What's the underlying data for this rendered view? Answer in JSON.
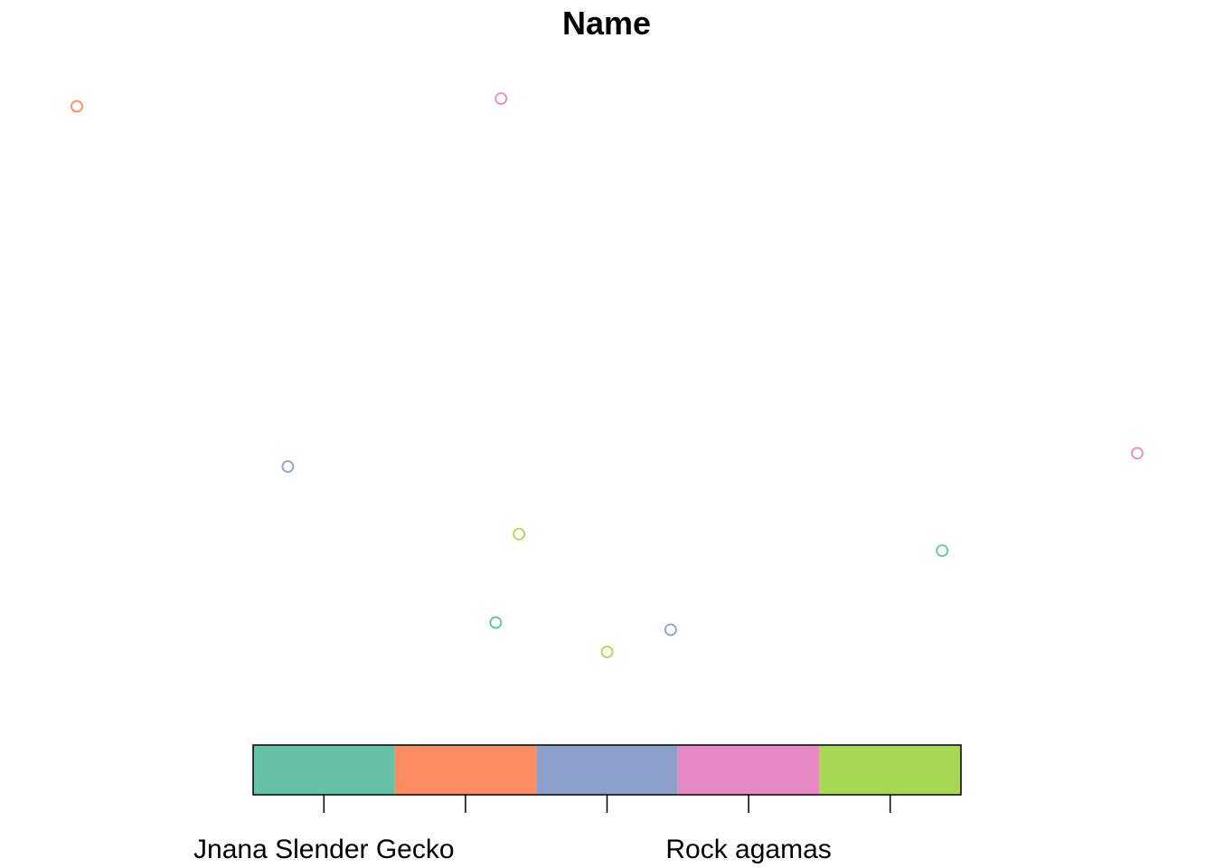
{
  "chart_data": {
    "type": "scatter",
    "title": "Name",
    "xlabel": "",
    "ylabel": "",
    "axes_visible": false,
    "grid": false,
    "point_style": "open-circle",
    "xlim": [
      0,
      1
    ],
    "ylim": [
      0,
      1
    ],
    "points": [
      {
        "x": 0.0,
        "y": 0.986,
        "category": 2
      },
      {
        "x": 0.4,
        "y": 1.0,
        "category": 4
      },
      {
        "x": 0.199,
        "y": 0.335,
        "category": 3
      },
      {
        "x": 0.417,
        "y": 0.213,
        "category": 5
      },
      {
        "x": 0.395,
        "y": 0.053,
        "category": 1
      },
      {
        "x": 0.5,
        "y": 0.0,
        "category": 5
      },
      {
        "x": 0.56,
        "y": 0.04,
        "category": 3
      },
      {
        "x": 0.816,
        "y": 0.183,
        "category": 1
      },
      {
        "x": 1.0,
        "y": 0.359,
        "category": 4
      }
    ],
    "legend": {
      "type": "color-bar",
      "placement": "bottom",
      "colors": [
        "#66C2A5",
        "#FC8D62",
        "#8DA0CB",
        "#E78AC3",
        "#A6D854"
      ],
      "tick_count": 5,
      "labels": [
        {
          "text": "Jnana Slender Gecko",
          "tick_index": 0
        },
        {
          "text": "Rock agamas",
          "tick_index": 3
        }
      ]
    }
  }
}
